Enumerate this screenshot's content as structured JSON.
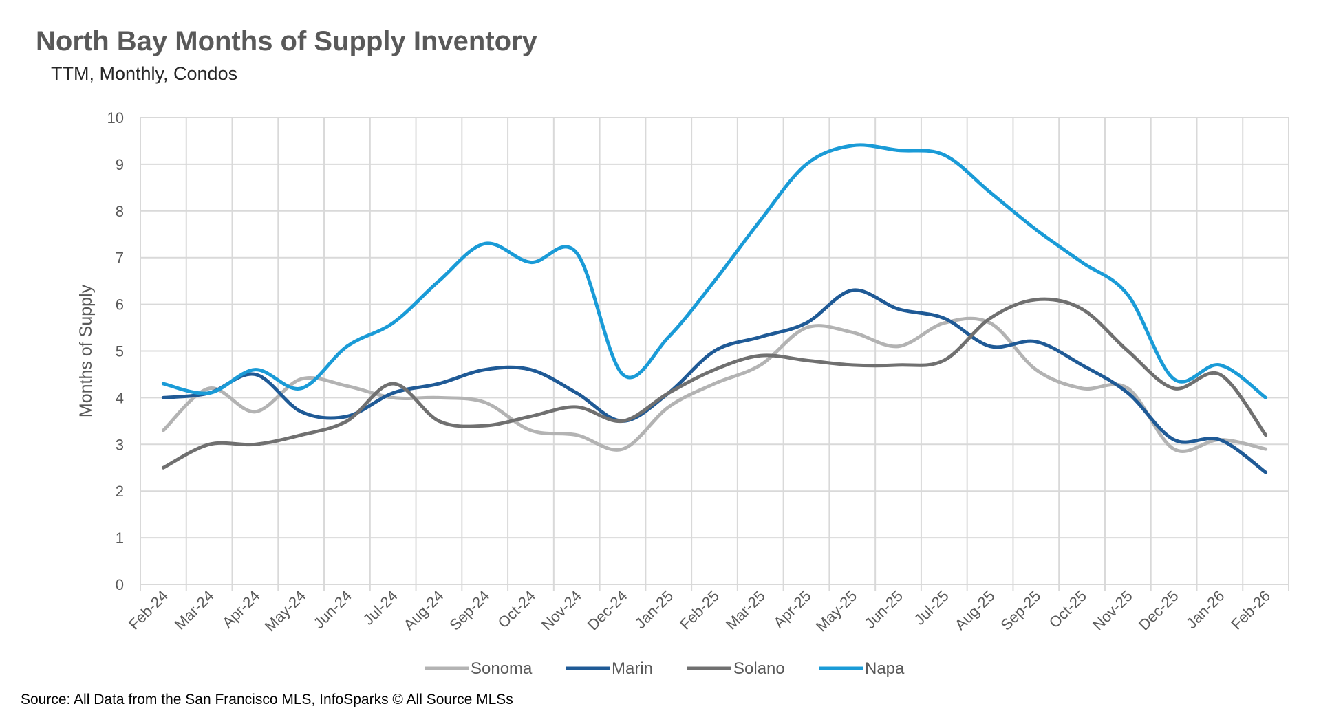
{
  "chart_data": {
    "type": "line",
    "title": "North Bay Months of Supply Inventory",
    "subtitle": "TTM, Monthly, Condos",
    "xlabel": "",
    "ylabel": "Months of Supply",
    "ylim": [
      0,
      10
    ],
    "yticks": [
      "0",
      "1",
      "2",
      "3",
      "4",
      "5",
      "6",
      "7",
      "8",
      "9",
      "10"
    ],
    "grid": true,
    "smooth": true,
    "legend_position": "bottom",
    "categories": [
      "Feb-24",
      "Mar-24",
      "Apr-24",
      "May-24",
      "Jun-24",
      "Jul-24",
      "Aug-24",
      "Sep-24",
      "Oct-24",
      "Nov-24",
      "Dec-24",
      "Jan-25",
      "Feb-25",
      "Mar-25",
      "Apr-25",
      "May-25",
      "Jun-25",
      "Jul-25",
      "Aug-25",
      "Sep-25",
      "Oct-25",
      "Nov-25",
      "Dec-25",
      "Jan-26",
      "Feb-26"
    ],
    "series": [
      {
        "name": "Sonoma",
        "color": "#b3b3b3",
        "values": [
          3.3,
          4.2,
          3.7,
          4.4,
          4.25,
          4.0,
          4.0,
          3.9,
          3.3,
          3.2,
          2.9,
          3.8,
          4.3,
          4.7,
          5.5,
          5.4,
          5.1,
          5.6,
          5.6,
          4.6,
          4.2,
          4.2,
          2.9,
          3.1,
          2.9
        ]
      },
      {
        "name": "Marin",
        "color": "#1f5a96",
        "values": [
          4.0,
          4.1,
          4.5,
          3.7,
          3.6,
          4.1,
          4.3,
          4.6,
          4.6,
          4.1,
          3.5,
          4.1,
          5.0,
          5.3,
          5.6,
          6.3,
          5.9,
          5.7,
          5.1,
          5.2,
          4.7,
          4.1,
          3.1,
          3.1,
          2.4
        ]
      },
      {
        "name": "Solano",
        "color": "#707070",
        "values": [
          2.5,
          3.0,
          3.0,
          3.2,
          3.5,
          4.3,
          3.5,
          3.4,
          3.6,
          3.8,
          3.5,
          4.1,
          4.6,
          4.9,
          4.8,
          4.7,
          4.7,
          4.8,
          5.7,
          6.1,
          5.9,
          5.0,
          4.2,
          4.5,
          3.2
        ]
      },
      {
        "name": "Napa",
        "color": "#1a9bd7",
        "values": [
          4.3,
          4.1,
          4.6,
          4.2,
          5.1,
          5.6,
          6.5,
          7.3,
          6.9,
          7.1,
          4.5,
          5.3,
          6.5,
          7.8,
          9.0,
          9.4,
          9.3,
          9.2,
          8.4,
          7.6,
          6.9,
          6.2,
          4.4,
          4.7,
          4.0
        ]
      }
    ]
  },
  "source": "Source: All Data from the San Francisco MLS, InfoSparks © All Source MLSs"
}
